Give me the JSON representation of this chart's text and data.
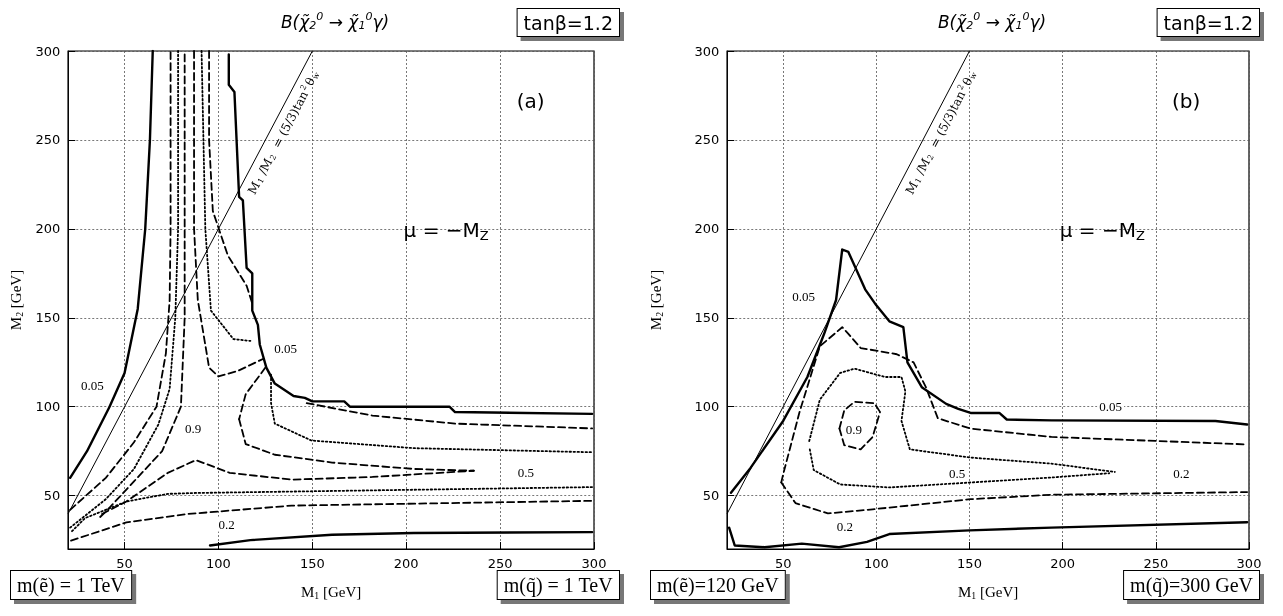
{
  "chart_data": [
    {
      "type": "line",
      "title": "B(χ̃$_{2}$$^{0}$ → χ̃$_{1}$$^{0}$γ)",
      "xlabel": "M$_{1}$ [GeV]",
      "ylabel": "M$_{2}$ [GeV]",
      "xlim": [
        20,
        300
      ],
      "ylim": [
        20,
        300
      ],
      "xticks": [
        50,
        100,
        150,
        200,
        250,
        300
      ],
      "yticks": [
        50,
        100,
        150,
        200,
        250,
        300
      ],
      "grid": true,
      "marker": "none",
      "series": [
        {
          "color": "#000000",
          "line_style": "solid",
          "x": [
            21,
            30,
            42,
            50,
            57,
            61,
            63.5,
            65
          ],
          "values": [
            60,
            75,
            100,
            119,
            155,
            200,
            250,
            300
          ]
        },
        {
          "name": "M$_{1}$/M$_{2}$ = (5/3)tan$^{2}$θ$_{w}$",
          "color": "#000000",
          "line_style": "solid",
          "x": [
            20,
            150
          ],
          "values": [
            40,
            300
          ]
        },
        {
          "color": "#000000",
          "line_style": "solid",
          "x": [
            105.5,
            105.5,
            108.5,
            111,
            113,
            115,
            118,
            118,
            121,
            122,
            125.5,
            130,
            140,
            146,
            150,
            167,
            170,
            223,
            226,
            299
          ],
          "values": [
            298,
            281,
            277,
            218,
            216,
            178,
            175,
            154,
            146,
            135,
            122,
            113,
            106,
            105,
            103,
            103,
            100,
            100,
            97,
            96
          ]
        },
        {
          "color": "#000000",
          "line_style": "solid",
          "x": [
            95.5,
            117,
            160.5,
            204,
            299
          ],
          "values": [
            22,
            25,
            28,
            29,
            29.5
          ]
        },
        {
          "color": "#000000",
          "line_style": "dashed",
          "x": [
            21,
            40,
            55,
            67,
            72,
            74,
            74.5,
            74.5
          ],
          "values": [
            42,
            60,
            80,
            100,
            130,
            160,
            200,
            300
          ]
        },
        {
          "color": "#000000",
          "line_style": "dotted",
          "x": [
            21,
            40,
            55,
            68,
            74,
            77,
            78.5,
            78.5
          ],
          "values": [
            32,
            48,
            65,
            90,
            110,
            150,
            200,
            300
          ]
        },
        {
          "color": "#000000",
          "line_style": "dashed",
          "x": [
            37,
            40,
            55,
            70,
            80,
            82,
            82,
            82
          ],
          "values": [
            38,
            41,
            58,
            75,
            100,
            150,
            200,
            300
          ]
        },
        {
          "color": "#000000",
          "line_style": "dashed",
          "x": [
            87,
            87,
            89,
            95,
            100,
            110,
            124
          ],
          "values": [
            300,
            200,
            160,
            122,
            117,
            120,
            127
          ]
        },
        {
          "color": "#000000",
          "line_style": "dotted",
          "x": [
            91,
            93,
            96,
            108,
            117
          ],
          "values": [
            300,
            200,
            154,
            138,
            137
          ]
        },
        {
          "color": "#000000",
          "line_style": "dashed",
          "x": [
            95,
            95,
            97,
            105,
            115,
            118
          ],
          "values": [
            300,
            250,
            210,
            185,
            168,
            158
          ]
        },
        {
          "color": "#000000",
          "line_style": "dashed",
          "x": [
            125,
            114.5,
            111
          ],
          "values": [
            122,
            107,
            93
          ]
        },
        {
          "color": "#000000",
          "line_style": "dashed",
          "x": [
            111,
            114.5,
            130,
            160.5,
            204,
            236
          ],
          "values": [
            93,
            79,
            73,
            68.6,
            65,
            64
          ]
        },
        {
          "color": "#000000",
          "line_style": "dotted",
          "x": [
            128,
            128,
            130,
            149.5,
            204,
            299
          ],
          "values": [
            118,
            102,
            90.5,
            81,
            76.7,
            74.4
          ]
        },
        {
          "color": "#000000",
          "line_style": "dashed",
          "x": [
            147,
            182,
            226,
            299
          ],
          "values": [
            102,
            95,
            90.5,
            87.8
          ]
        },
        {
          "color": "#000000",
          "line_style": "dashed",
          "x": [
            38,
            51,
            73,
            88,
            106,
            139,
            182,
            236
          ],
          "values": [
            39.7,
            46.7,
            62.8,
            70,
            62.8,
            59,
            60.5,
            64
          ]
        },
        {
          "color": "#000000",
          "line_style": "dotted",
          "x": [
            22,
            29,
            51,
            73,
            88,
            299
          ],
          "values": [
            30,
            37.4,
            46.7,
            51,
            51.5,
            54.8
          ]
        },
        {
          "color": "#000000",
          "line_style": "dashed",
          "x": [
            21.5,
            51,
            84,
            139,
            299
          ],
          "values": [
            24.7,
            35,
            39.7,
            44.4,
            47.1
          ]
        }
      ],
      "annotations": [
        "tanβ=1.2",
        "(a)",
        "μ = −M$_{Z}$",
        "m(ẽ) = 1 TeV",
        "m(q̃) = 1 TeV",
        "0.05",
        "0.9",
        "0.05",
        "0.5",
        "0.2"
      ]
    },
    {
      "type": "line",
      "title": "B(χ̃$_{2}$$^{0}$ → χ̃$_{1}$$^{0}$γ)",
      "xlabel": "M$_{1}$ [GeV]",
      "ylabel": "M$_{2}$ [GeV]",
      "xlim": [
        20,
        300
      ],
      "ylim": [
        20,
        300
      ],
      "xticks": [
        50,
        100,
        150,
        200,
        250,
        300
      ],
      "yticks": [
        50,
        100,
        150,
        200,
        250,
        300
      ],
      "grid": true,
      "marker": "none",
      "series": [
        {
          "color": "#000000",
          "line_style": "solid",
          "x": [
            22,
            32.5,
            50,
            63,
            72,
            78.4,
            81.7,
            85,
            94,
            100,
            107,
            114.5,
            116.7,
            124.4,
            137.5,
            144,
            150.6,
            166,
            170,
            194,
            282,
            299
          ],
          "values": [
            51.6,
            65.6,
            92,
            116.7,
            141,
            160,
            188.4,
            187,
            166,
            157,
            148,
            144.7,
            124.9,
            111,
            101.6,
            98.8,
            96.5,
            96.5,
            92.8,
            92.3,
            92,
            90
          ]
        },
        {
          "name": "M$_{1}$/M$_{2}$ = (5/3)tan$^{2}$θ$_{w}$",
          "color": "#000000",
          "line_style": "solid",
          "x": [
            20,
            150
          ],
          "values": [
            40,
            300
          ]
        },
        {
          "color": "#000000",
          "line_style": "dashed",
          "x": [
            49,
            50,
            58.8,
            69.7,
            81.7,
            85,
            91.6,
            111,
            120,
            126.6,
            133,
            150.6,
            194,
            299
          ],
          "values": [
            57.4,
            62,
            97,
            134,
            144.7,
            141,
            133,
            129.5,
            124.9,
            111,
            93.5,
            87.7,
            83,
            78.8
          ]
        },
        {
          "color": "#000000",
          "line_style": "dashed",
          "x": [
            49,
            56.6,
            74,
            98,
            150.6,
            194,
            299
          ],
          "values": [
            57.4,
            45.8,
            40,
            42.3,
            48,
            50.5,
            52
          ]
        },
        {
          "color": "#000000",
          "line_style": "dotted",
          "x": [
            64,
            69.7,
            80.6,
            88.3,
            104.7,
            113.5,
            115.6,
            113.5,
            118,
            150.6,
            194,
            228
          ],
          "values": [
            80.7,
            104,
            119,
            121.4,
            116.7,
            116.7,
            108.6,
            92,
            76,
            71.4,
            68,
            63.3
          ]
        },
        {
          "color": "#000000",
          "line_style": "dotted",
          "x": [
            64.3,
            66.4,
            80.6,
            107,
            150.6,
            194,
            225
          ],
          "values": [
            76,
            64.4,
            56.3,
            54.6,
            57.4,
            60.2,
            62.6
          ]
        },
        {
          "color": "#000000",
          "line_style": "dashed",
          "x": [
            80.2,
            82.8,
            88.3,
            99,
            102
          ],
          "values": [
            87.7,
            98,
            102.8,
            102,
            97
          ]
        },
        {
          "color": "#000000",
          "line_style": "dashed",
          "x": [
            80.2,
            82.8,
            91.6,
            98,
            102
          ],
          "values": [
            87.7,
            78.4,
            76,
            83,
            97
          ]
        },
        {
          "color": "#000000",
          "line_style": "solid",
          "x": [
            21,
            24,
            40,
            60,
            80,
            95,
            107,
            150,
            194,
            299
          ],
          "values": [
            32,
            22,
            21,
            23,
            21,
            24,
            28.4,
            30.5,
            32,
            35
          ]
        }
      ],
      "annotations": [
        "tanβ=1.2",
        "(b)",
        "μ = −M$_{Z}$",
        "m(ẽ)=120 GeV",
        "m(q̃)=300 GeV",
        "0.05",
        "0.05",
        "0.9",
        "0.5",
        "0.2",
        "0.2"
      ]
    }
  ]
}
